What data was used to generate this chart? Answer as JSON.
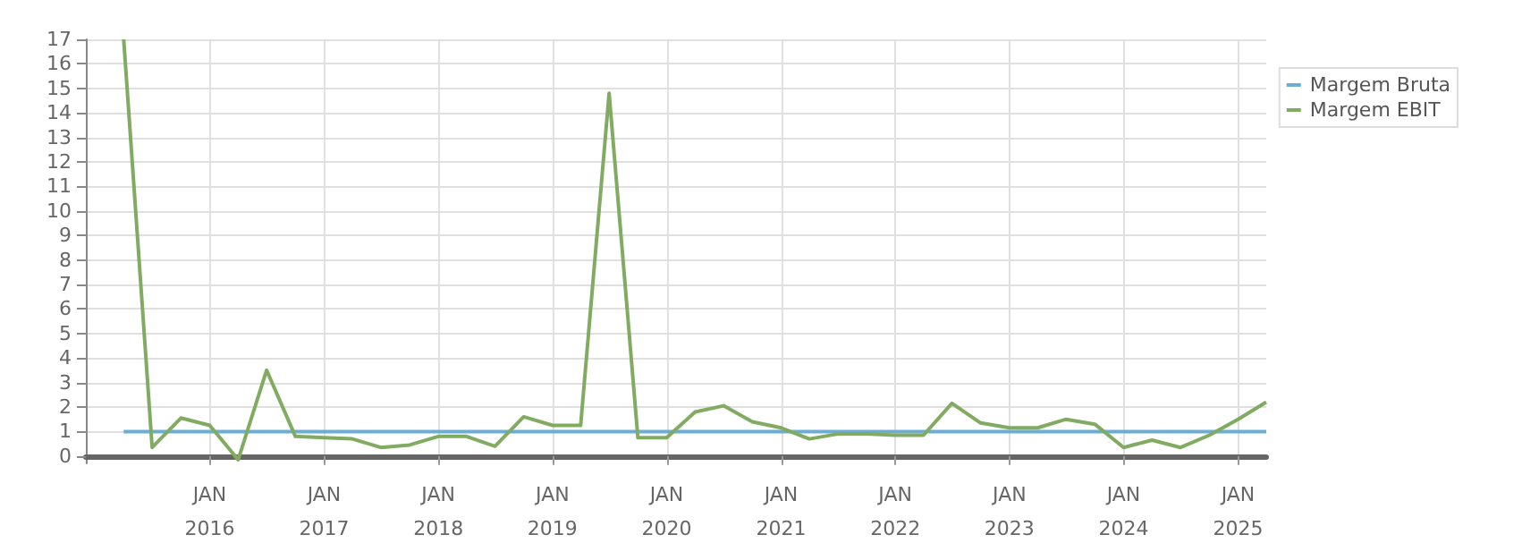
{
  "chart_data": {
    "type": "line",
    "x": [
      "2015-04",
      "2015-07",
      "2015-10",
      "2016-01",
      "2016-04",
      "2016-07",
      "2016-10",
      "2017-01",
      "2017-04",
      "2017-07",
      "2017-10",
      "2018-01",
      "2018-04",
      "2018-07",
      "2018-10",
      "2019-01",
      "2019-04",
      "2019-07",
      "2019-10",
      "2020-01",
      "2020-04",
      "2020-07",
      "2020-10",
      "2021-01",
      "2021-04",
      "2021-07",
      "2021-10",
      "2022-01",
      "2022-04",
      "2022-07",
      "2022-10",
      "2023-01",
      "2023-04",
      "2023-07",
      "2023-10",
      "2024-01",
      "2024-04",
      "2024-07",
      "2024-10",
      "2025-01",
      "2025-04"
    ],
    "series": [
      {
        "name": "Margem Bruta",
        "color": "#6aaed6",
        "values": [
          1,
          1,
          1,
          1,
          1,
          1,
          1,
          1,
          1,
          1,
          1,
          1,
          1,
          1,
          1,
          1,
          1,
          1,
          1,
          1,
          1,
          1,
          1,
          1,
          1,
          1,
          1,
          1,
          1,
          1,
          1,
          1,
          1,
          1,
          1,
          1,
          1,
          1,
          1,
          1,
          1
        ]
      },
      {
        "name": "Margem EBIT",
        "color": "#82ab62",
        "values": [
          17,
          0.35,
          1.55,
          1.25,
          -0.15,
          3.5,
          0.8,
          0.75,
          0.7,
          0.35,
          0.45,
          0.8,
          0.8,
          0.4,
          1.6,
          1.25,
          1.25,
          14.8,
          0.75,
          0.75,
          1.8,
          2.05,
          1.4,
          1.15,
          0.7,
          0.9,
          0.9,
          0.85,
          0.85,
          2.15,
          1.35,
          1.15,
          1.15,
          1.5,
          1.3,
          0.35,
          0.65,
          0.35,
          0.85,
          1.5,
          2.2
        ]
      }
    ],
    "xlim": [
      "2014-12-01",
      "2025-04-01"
    ],
    "xticks": [
      {
        "value": "2016-01",
        "label": "JAN\n2016"
      },
      {
        "value": "2017-01",
        "label": "JAN\n2017"
      },
      {
        "value": "2018-01",
        "label": "JAN\n2018"
      },
      {
        "value": "2019-01",
        "label": "JAN\n2019"
      },
      {
        "value": "2020-01",
        "label": "JAN\n2020"
      },
      {
        "value": "2021-01",
        "label": "JAN\n2021"
      },
      {
        "value": "2022-01",
        "label": "JAN\n2022"
      },
      {
        "value": "2023-01",
        "label": "JAN\n2023"
      },
      {
        "value": "2024-01",
        "label": "JAN\n2024"
      },
      {
        "value": "2025-01",
        "label": "JAN\n2025"
      }
    ],
    "ylim": [
      -0.3,
      17
    ],
    "yticks": [
      0,
      1,
      2,
      3,
      4,
      5,
      6,
      7,
      8,
      9,
      10,
      11,
      12,
      13,
      14,
      15,
      16,
      17
    ],
    "grid": true,
    "legend": "top right",
    "marker": "none",
    "line_style": "solid"
  }
}
